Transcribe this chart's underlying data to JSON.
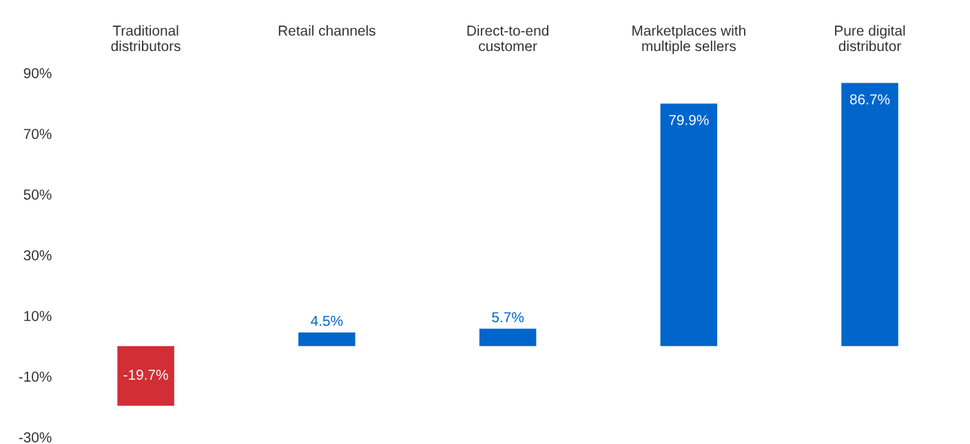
{
  "chart_data": {
    "type": "bar",
    "categories": [
      "Traditional\ndistributors",
      "Retail channels",
      "Direct-to-end\ncustomer",
      "Marketplaces with\nmultiple sellers",
      "Pure digital\ndistributor"
    ],
    "values": [
      -19.7,
      4.5,
      5.7,
      79.9,
      86.7
    ],
    "colors": [
      "#d12e36",
      "#0066cc",
      "#0066cc",
      "#0066cc",
      "#0066cc"
    ],
    "value_labels": [
      "-19.7%",
      "4.5%",
      "5.7%",
      "79.9%",
      "86.7%"
    ],
    "ylim": [
      -30,
      90
    ],
    "yticks": [
      {
        "value": -30,
        "label": "-30%"
      },
      {
        "value": -10,
        "label": "-10%"
      },
      {
        "value": 10,
        "label": "10%"
      },
      {
        "value": 30,
        "label": "30%"
      },
      {
        "value": 50,
        "label": "50%"
      },
      {
        "value": 70,
        "label": "70%"
      },
      {
        "value": 90,
        "label": "90%"
      }
    ],
    "grid": false,
    "legend": false
  }
}
